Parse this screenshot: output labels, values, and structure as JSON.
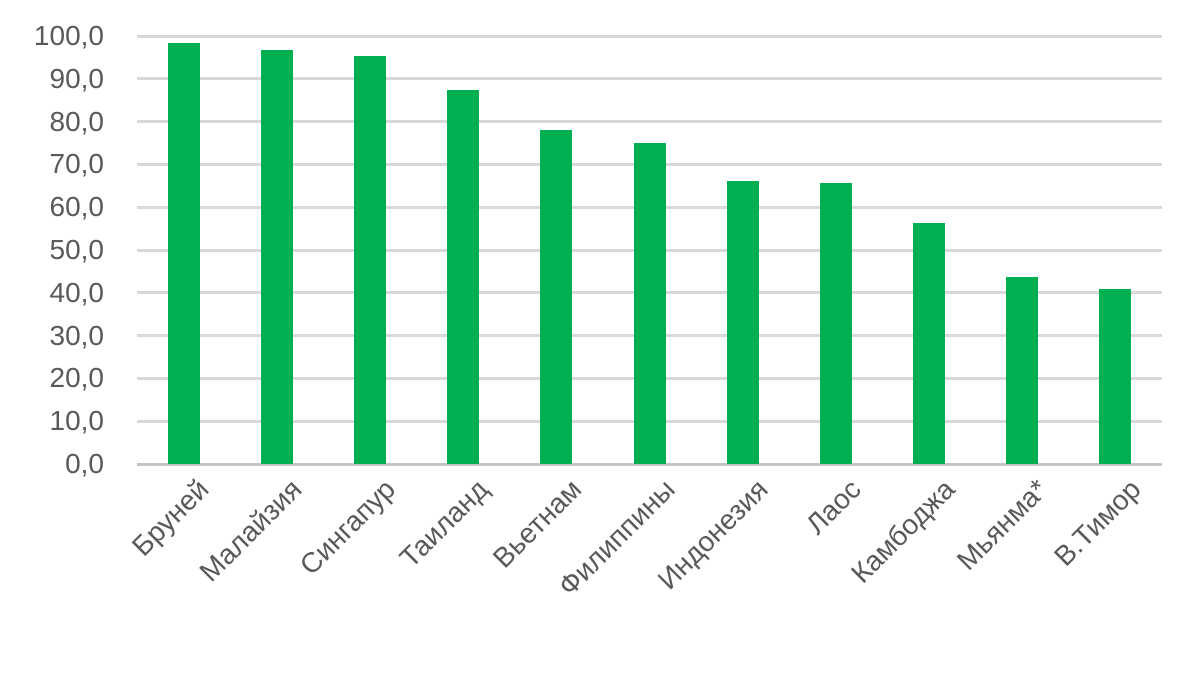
{
  "chart_data": {
    "type": "bar",
    "title": "",
    "xlabel": "",
    "ylabel": "",
    "categories": [
      "Бруней",
      "Малайзия",
      "Сингапур",
      "Таиланд",
      "Вьетнам",
      "Филиппины",
      "Индонезия",
      "Лаос",
      "Камбоджа",
      "Мьянма*",
      "В.Тимор"
    ],
    "values": [
      98.4,
      96.7,
      95.4,
      87.4,
      78.0,
      74.9,
      66.1,
      65.7,
      56.3,
      43.7,
      40.8
    ],
    "ylim": [
      0,
      100
    ],
    "y_ticks": {
      "values": [
        0,
        10,
        20,
        30,
        40,
        50,
        60,
        70,
        80,
        90,
        100
      ],
      "labels": [
        "0,0",
        "10,0",
        "20,0",
        "30,0",
        "40,0",
        "50,0",
        "60,0",
        "70,0",
        "80,0",
        "90,0",
        "100,0"
      ]
    },
    "decimal_separator": ",",
    "grid": "horizontal",
    "legend": "none",
    "bar_color": "#00B050"
  },
  "colors": {
    "background": "#FFFFFF",
    "bar": "#00B050",
    "gridline": "#D9D9D9",
    "axis_line": "#C6C6C6",
    "tick_text": "#595959"
  }
}
